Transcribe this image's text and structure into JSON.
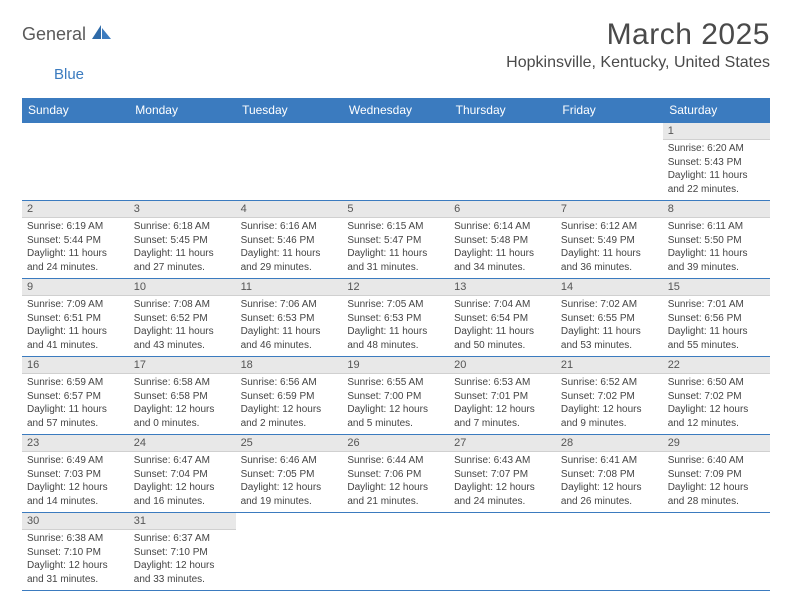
{
  "logo": {
    "part1": "General",
    "part2": "Blue"
  },
  "title": "March 2025",
  "location": "Hopkinsville, Kentucky, United States",
  "colors": {
    "header_bg": "#3b7bbf",
    "header_text": "#ffffff",
    "daynum_bg": "#e8e8e8",
    "border": "#3b7bbf",
    "logo_gray": "#5a5a5a",
    "logo_blue": "#3b7bbf"
  },
  "weekdays": [
    "Sunday",
    "Monday",
    "Tuesday",
    "Wednesday",
    "Thursday",
    "Friday",
    "Saturday"
  ],
  "weeks": [
    [
      null,
      null,
      null,
      null,
      null,
      null,
      {
        "n": "1",
        "sr": "6:20 AM",
        "ss": "5:43 PM",
        "dl": "11 hours and 22 minutes."
      }
    ],
    [
      {
        "n": "2",
        "sr": "6:19 AM",
        "ss": "5:44 PM",
        "dl": "11 hours and 24 minutes."
      },
      {
        "n": "3",
        "sr": "6:18 AM",
        "ss": "5:45 PM",
        "dl": "11 hours and 27 minutes."
      },
      {
        "n": "4",
        "sr": "6:16 AM",
        "ss": "5:46 PM",
        "dl": "11 hours and 29 minutes."
      },
      {
        "n": "5",
        "sr": "6:15 AM",
        "ss": "5:47 PM",
        "dl": "11 hours and 31 minutes."
      },
      {
        "n": "6",
        "sr": "6:14 AM",
        "ss": "5:48 PM",
        "dl": "11 hours and 34 minutes."
      },
      {
        "n": "7",
        "sr": "6:12 AM",
        "ss": "5:49 PM",
        "dl": "11 hours and 36 minutes."
      },
      {
        "n": "8",
        "sr": "6:11 AM",
        "ss": "5:50 PM",
        "dl": "11 hours and 39 minutes."
      }
    ],
    [
      {
        "n": "9",
        "sr": "7:09 AM",
        "ss": "6:51 PM",
        "dl": "11 hours and 41 minutes."
      },
      {
        "n": "10",
        "sr": "7:08 AM",
        "ss": "6:52 PM",
        "dl": "11 hours and 43 minutes."
      },
      {
        "n": "11",
        "sr": "7:06 AM",
        "ss": "6:53 PM",
        "dl": "11 hours and 46 minutes."
      },
      {
        "n": "12",
        "sr": "7:05 AM",
        "ss": "6:53 PM",
        "dl": "11 hours and 48 minutes."
      },
      {
        "n": "13",
        "sr": "7:04 AM",
        "ss": "6:54 PM",
        "dl": "11 hours and 50 minutes."
      },
      {
        "n": "14",
        "sr": "7:02 AM",
        "ss": "6:55 PM",
        "dl": "11 hours and 53 minutes."
      },
      {
        "n": "15",
        "sr": "7:01 AM",
        "ss": "6:56 PM",
        "dl": "11 hours and 55 minutes."
      }
    ],
    [
      {
        "n": "16",
        "sr": "6:59 AM",
        "ss": "6:57 PM",
        "dl": "11 hours and 57 minutes."
      },
      {
        "n": "17",
        "sr": "6:58 AM",
        "ss": "6:58 PM",
        "dl": "12 hours and 0 minutes."
      },
      {
        "n": "18",
        "sr": "6:56 AM",
        "ss": "6:59 PM",
        "dl": "12 hours and 2 minutes."
      },
      {
        "n": "19",
        "sr": "6:55 AM",
        "ss": "7:00 PM",
        "dl": "12 hours and 5 minutes."
      },
      {
        "n": "20",
        "sr": "6:53 AM",
        "ss": "7:01 PM",
        "dl": "12 hours and 7 minutes."
      },
      {
        "n": "21",
        "sr": "6:52 AM",
        "ss": "7:02 PM",
        "dl": "12 hours and 9 minutes."
      },
      {
        "n": "22",
        "sr": "6:50 AM",
        "ss": "7:02 PM",
        "dl": "12 hours and 12 minutes."
      }
    ],
    [
      {
        "n": "23",
        "sr": "6:49 AM",
        "ss": "7:03 PM",
        "dl": "12 hours and 14 minutes."
      },
      {
        "n": "24",
        "sr": "6:47 AM",
        "ss": "7:04 PM",
        "dl": "12 hours and 16 minutes."
      },
      {
        "n": "25",
        "sr": "6:46 AM",
        "ss": "7:05 PM",
        "dl": "12 hours and 19 minutes."
      },
      {
        "n": "26",
        "sr": "6:44 AM",
        "ss": "7:06 PM",
        "dl": "12 hours and 21 minutes."
      },
      {
        "n": "27",
        "sr": "6:43 AM",
        "ss": "7:07 PM",
        "dl": "12 hours and 24 minutes."
      },
      {
        "n": "28",
        "sr": "6:41 AM",
        "ss": "7:08 PM",
        "dl": "12 hours and 26 minutes."
      },
      {
        "n": "29",
        "sr": "6:40 AM",
        "ss": "7:09 PM",
        "dl": "12 hours and 28 minutes."
      }
    ],
    [
      {
        "n": "30",
        "sr": "6:38 AM",
        "ss": "7:10 PM",
        "dl": "12 hours and 31 minutes."
      },
      {
        "n": "31",
        "sr": "6:37 AM",
        "ss": "7:10 PM",
        "dl": "12 hours and 33 minutes."
      },
      null,
      null,
      null,
      null,
      null
    ]
  ],
  "labels": {
    "sunrise": "Sunrise:",
    "sunset": "Sunset:",
    "daylight": "Daylight:"
  }
}
